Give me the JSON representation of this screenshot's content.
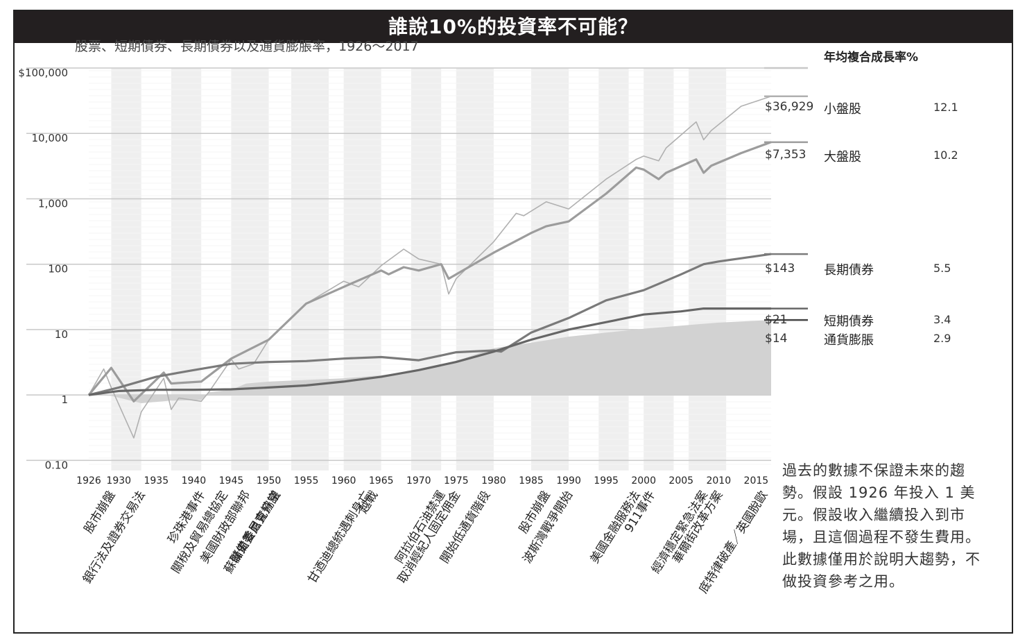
{
  "title": "誰說10%的投資率不可能？",
  "subtitle": "股票、短期債券、長期債券以及通貨膨脹率，1926～2017",
  "legend_header": "年均複合成長率%",
  "note": "過去的數據不保證未來的趨勢。假設 1926 年投入 1 美元。假設收入繼續投入到市場，且這個過程不發生費用。此數據僅用於說明大趨勢，不做投資參考之用。",
  "chart_data": {
    "type": "line",
    "title": "誰說10%的投資率不可能？",
    "subtitle": "股票、短期債券、長期債券以及通貨膨脹率，1926～2017",
    "xlabel": "",
    "ylabel": "",
    "y_scale": "log",
    "ylim": [
      0.07,
      100000
    ],
    "xlim": [
      1926,
      2017
    ],
    "y_ticks": [
      0.1,
      1,
      10,
      100,
      1000,
      10000,
      100000
    ],
    "y_tick_labels": [
      "0.10",
      "1",
      "10",
      "100",
      "1,000",
      "10,000",
      "$100,000"
    ],
    "x_ticks": [
      1926,
      1930,
      1935,
      1940,
      1945,
      1950,
      1955,
      1960,
      1965,
      1970,
      1975,
      1980,
      1985,
      1990,
      1995,
      2000,
      2005,
      2010,
      2015
    ],
    "grid": true,
    "legend_position": "right",
    "series": [
      {
        "name": "小盤股",
        "style": "thin",
        "color": "#b0b0b0",
        "final_label": "$36,929",
        "rate": "12.1",
        "x": [
          1926,
          1928,
          1929,
          1932,
          1933,
          1936,
          1937,
          1938,
          1941,
          1942,
          1945,
          1946,
          1948,
          1950,
          1955,
          1960,
          1962,
          1965,
          1968,
          1970,
          1973,
          1974,
          1975,
          1980,
          1983,
          1984,
          1987,
          1990,
          1995,
          1999,
          2000,
          2002,
          2003,
          2007,
          2008,
          2009,
          2013,
          2017
        ],
        "y": [
          1,
          2.5,
          1.3,
          0.22,
          0.55,
          1.8,
          0.6,
          0.9,
          0.8,
          1.1,
          3.5,
          2.5,
          3,
          7,
          25,
          55,
          45,
          95,
          170,
          120,
          100,
          35,
          60,
          220,
          600,
          550,
          900,
          700,
          2000,
          4000,
          4500,
          3800,
          6000,
          15000,
          8000,
          11000,
          26000,
          36929
        ]
      },
      {
        "name": "大盤股",
        "style": "thick",
        "color": "#9c9c9c",
        "final_label": "$7,353",
        "rate": "10.2",
        "x": [
          1926,
          1929,
          1932,
          1936,
          1937,
          1941,
          1945,
          1950,
          1955,
          1960,
          1965,
          1966,
          1968,
          1970,
          1973,
          1974,
          1980,
          1985,
          1987,
          1990,
          1995,
          1999,
          2000,
          2002,
          2003,
          2007,
          2008,
          2009,
          2013,
          2017
        ],
        "y": [
          1,
          2.6,
          0.8,
          2.2,
          1.5,
          1.6,
          3.6,
          7,
          25,
          45,
          80,
          70,
          90,
          80,
          100,
          60,
          150,
          300,
          380,
          450,
          1200,
          3000,
          2800,
          2000,
          2500,
          4000,
          2500,
          3200,
          5000,
          7353
        ]
      },
      {
        "name": "長期債券",
        "style": "thick",
        "color": "#7a7a7a",
        "final_label": "$143",
        "rate": "5.5",
        "x": [
          1926,
          1930,
          1935,
          1940,
          1945,
          1950,
          1955,
          1960,
          1965,
          1970,
          1975,
          1980,
          1981,
          1985,
          1990,
          1995,
          2000,
          2005,
          2008,
          2010,
          2017
        ],
        "y": [
          1,
          1.3,
          1.9,
          2.4,
          3,
          3.2,
          3.3,
          3.6,
          3.8,
          3.4,
          4.5,
          4.8,
          4.6,
          9,
          15,
          28,
          40,
          70,
          100,
          110,
          143
        ]
      },
      {
        "name": "短期債券",
        "style": "thick",
        "color": "#666666",
        "final_label": "$21",
        "rate": "3.4",
        "x": [
          1926,
          1930,
          1935,
          1940,
          1945,
          1950,
          1955,
          1960,
          1965,
          1970,
          1975,
          1980,
          1985,
          1990,
          1995,
          2000,
          2005,
          2008,
          2010,
          2017
        ],
        "y": [
          1,
          1.15,
          1.2,
          1.2,
          1.22,
          1.3,
          1.4,
          1.6,
          1.9,
          2.4,
          3.2,
          4.6,
          7,
          10,
          13,
          17,
          19,
          21,
          21,
          21
        ]
      },
      {
        "name": "通貨膨脹",
        "style": "area",
        "color": "#d2d2d2",
        "final_label": "$14",
        "rate": "2.9",
        "x": [
          1926,
          1929,
          1933,
          1937,
          1941,
          1942,
          1945,
          1947,
          1950,
          1955,
          1960,
          1965,
          1970,
          1975,
          1980,
          1985,
          1990,
          1995,
          2000,
          2005,
          2010,
          2017
        ],
        "y": [
          1,
          0.97,
          0.75,
          0.82,
          0.84,
          1.1,
          1.2,
          1.5,
          1.6,
          1.7,
          1.8,
          2,
          2.4,
          3.3,
          5.2,
          6.3,
          7.8,
          9,
          10.3,
          11.5,
          12.8,
          14
        ]
      }
    ],
    "events": [
      {
        "x": 1929,
        "label": "股市崩盤"
      },
      {
        "x": 1933,
        "label": "銀行法及證券交易法"
      },
      {
        "x": 1941,
        "label": "珍珠港事件"
      },
      {
        "x": 1944,
        "label": "關稅及貿易總協定"
      },
      {
        "x": 1947,
        "label": "美國財政部聯邦"
      },
      {
        "x": 1951,
        "label": "儲備委員會協議"
      },
      {
        "x": 1951,
        "label": "蘇聯史普尼克升空"
      },
      {
        "x": 1963,
        "label": "甘迺迪總統遇刺身亡"
      },
      {
        "x": 1964,
        "label": "越戰"
      },
      {
        "x": 1973,
        "label": "阿拉伯石油禁運"
      },
      {
        "x": 1975,
        "label": "取消經紀人固定佣金"
      },
      {
        "x": 1979,
        "label": "開始低通貨階段"
      },
      {
        "x": 1987,
        "label": "股市崩盤"
      },
      {
        "x": 1990,
        "label": "波斯灣戰爭開始"
      },
      {
        "x": 1999,
        "label": "美國金融服務法"
      },
      {
        "x": 2001,
        "label": "911事件"
      },
      {
        "x": 2008,
        "label": "經濟穩定緊急法案"
      },
      {
        "x": 2010,
        "label": "華爾街改革方案"
      },
      {
        "x": 2016,
        "label": "底特律破產／英國脫歐"
      }
    ],
    "shaded_periods": [
      [
        1929,
        1933
      ],
      [
        1937,
        1941
      ],
      [
        1945,
        1950
      ],
      [
        1953,
        1958
      ],
      [
        1960,
        1965
      ],
      [
        1969,
        1973
      ],
      [
        1975,
        1980
      ],
      [
        1985,
        1990
      ],
      [
        1994,
        1998
      ],
      [
        2000,
        2004
      ],
      [
        2006,
        2011
      ]
    ]
  }
}
